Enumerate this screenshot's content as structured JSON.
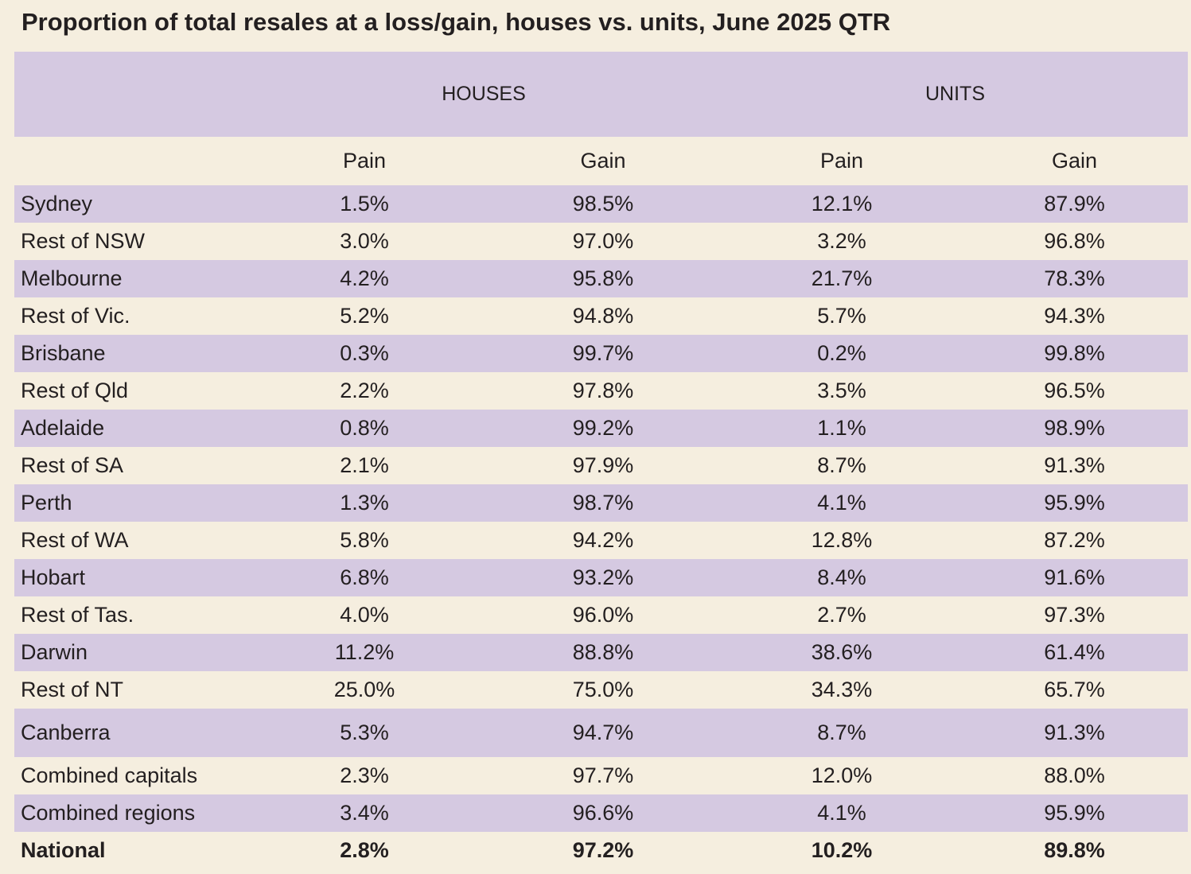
{
  "title": "Proportion of total resales at a loss/gain, houses vs. units, June 2025 QTR",
  "table": {
    "group_headers": [
      "HOUSES",
      "UNITS"
    ],
    "col_headers": [
      "Pain",
      "Gain",
      "Pain",
      "Gain"
    ]
  },
  "chart_data": {
    "type": "table",
    "title": "Proportion of total resales at a loss/gain, houses vs. units, June 2025 QTR",
    "unit": "percent",
    "column_groups": [
      {
        "label": "HOUSES",
        "columns": [
          "Pain",
          "Gain"
        ]
      },
      {
        "label": "UNITS",
        "columns": [
          "Pain",
          "Gain"
        ]
      }
    ],
    "rows": [
      {
        "region": "Sydney",
        "houses_pain": 1.5,
        "houses_gain": 98.5,
        "units_pain": 12.1,
        "units_gain": 87.9
      },
      {
        "region": "Rest of NSW",
        "houses_pain": 3.0,
        "houses_gain": 97.0,
        "units_pain": 3.2,
        "units_gain": 96.8
      },
      {
        "region": "Melbourne",
        "houses_pain": 4.2,
        "houses_gain": 95.8,
        "units_pain": 21.7,
        "units_gain": 78.3
      },
      {
        "region": "Rest of Vic.",
        "houses_pain": 5.2,
        "houses_gain": 94.8,
        "units_pain": 5.7,
        "units_gain": 94.3
      },
      {
        "region": "Brisbane",
        "houses_pain": 0.3,
        "houses_gain": 99.7,
        "units_pain": 0.2,
        "units_gain": 99.8
      },
      {
        "region": "Rest of Qld",
        "houses_pain": 2.2,
        "houses_gain": 97.8,
        "units_pain": 3.5,
        "units_gain": 96.5
      },
      {
        "region": "Adelaide",
        "houses_pain": 0.8,
        "houses_gain": 99.2,
        "units_pain": 1.1,
        "units_gain": 98.9
      },
      {
        "region": "Rest of SA",
        "houses_pain": 2.1,
        "houses_gain": 97.9,
        "units_pain": 8.7,
        "units_gain": 91.3
      },
      {
        "region": "Perth",
        "houses_pain": 1.3,
        "houses_gain": 98.7,
        "units_pain": 4.1,
        "units_gain": 95.9
      },
      {
        "region": "Rest of WA",
        "houses_pain": 5.8,
        "houses_gain": 94.2,
        "units_pain": 12.8,
        "units_gain": 87.2
      },
      {
        "region": "Hobart",
        "houses_pain": 6.8,
        "houses_gain": 93.2,
        "units_pain": 8.4,
        "units_gain": 91.6
      },
      {
        "region": "Rest of Tas.",
        "houses_pain": 4.0,
        "houses_gain": 96.0,
        "units_pain": 2.7,
        "units_gain": 97.3
      },
      {
        "region": "Darwin",
        "houses_pain": 11.2,
        "houses_gain": 88.8,
        "units_pain": 38.6,
        "units_gain": 61.4
      },
      {
        "region": "Rest of NT",
        "houses_pain": 25.0,
        "houses_gain": 75.0,
        "units_pain": 34.3,
        "units_gain": 65.7
      },
      {
        "region": "Canberra",
        "houses_pain": 5.3,
        "houses_gain": 94.7,
        "units_pain": 8.7,
        "units_gain": 91.3
      },
      {
        "region": "Combined capitals",
        "houses_pain": 2.3,
        "houses_gain": 97.7,
        "units_pain": 12.0,
        "units_gain": 88.0
      },
      {
        "region": "Combined regions",
        "houses_pain": 3.4,
        "houses_gain": 96.6,
        "units_pain": 4.1,
        "units_gain": 95.9
      },
      {
        "region": "National",
        "houses_pain": 2.8,
        "houses_gain": 97.2,
        "units_pain": 10.2,
        "units_gain": 89.8
      }
    ]
  },
  "colors": {
    "background": "#f5eedf",
    "row_stripe": "#d5c9e1",
    "header_band": "#d5c9e1",
    "text": "#231f20"
  }
}
